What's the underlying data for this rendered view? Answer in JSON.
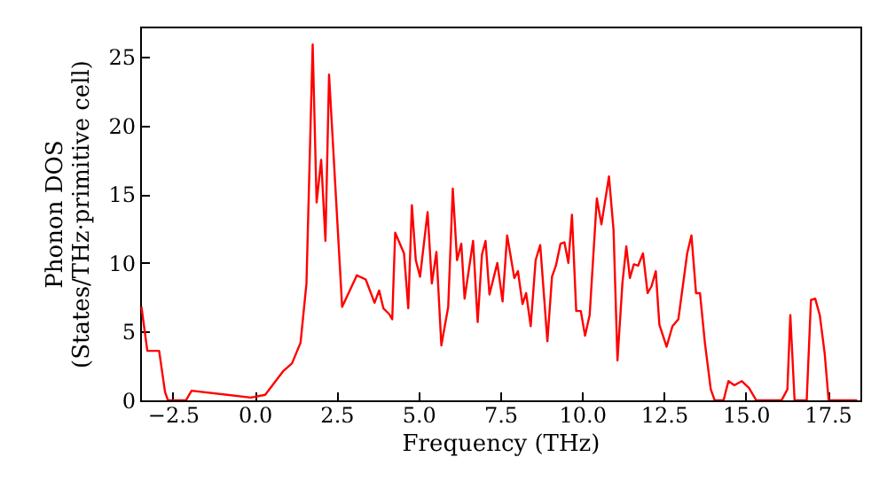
{
  "chart_data": {
    "type": "line",
    "xlabel": "Frequency (THz)",
    "ylabel": "Phonon DOS\n(States/THz·primitive cell)",
    "xlim": [
      -3.5,
      18.5
    ],
    "ylim": [
      0,
      27.2
    ],
    "xticks": [
      {
        "value": -2.5,
        "label": "−2.5"
      },
      {
        "value": 0,
        "label": "0.0"
      },
      {
        "value": 2.5,
        "label": "2.5"
      },
      {
        "value": 5,
        "label": "5.0"
      },
      {
        "value": 7.5,
        "label": "7.5"
      },
      {
        "value": 10,
        "label": "10.0"
      },
      {
        "value": 12.5,
        "label": "12.5"
      },
      {
        "value": 15,
        "label": "15.0"
      },
      {
        "value": 17.5,
        "label": "17.5"
      }
    ],
    "yticks": [
      0,
      5,
      10,
      15,
      20,
      25
    ],
    "grid": false,
    "marker": "none",
    "line_style": "solid",
    "x": [
      -3.46,
      -3.28,
      -2.92,
      -2.74,
      -2.65,
      -2.1,
      -1.93,
      -0.12,
      0.32,
      0.86,
      1.14,
      1.4,
      1.58,
      1.77,
      1.89,
      2.03,
      2.16,
      2.27,
      2.67,
      3.12,
      3.39,
      3.66,
      3.8,
      3.93,
      4.1,
      4.2,
      4.29,
      4.56,
      4.69,
      4.8,
      4.92,
      5.05,
      5.28,
      5.41,
      5.55,
      5.7,
      5.91,
      6.05,
      6.18,
      6.31,
      6.41,
      6.67,
      6.81,
      6.94,
      7.05,
      7.17,
      7.41,
      7.57,
      7.71,
      7.93,
      8.04,
      8.18,
      8.29,
      8.43,
      8.58,
      8.72,
      8.94,
      9.08,
      9.2,
      9.34,
      9.46,
      9.58,
      9.69,
      9.82,
      9.96,
      10.09,
      10.23,
      10.45,
      10.59,
      10.82,
      10.96,
      11.08,
      11.23,
      11.35,
      11.46,
      11.58,
      11.71,
      11.86,
      12.0,
      12.12,
      12.25,
      12.36,
      12.58,
      12.76,
      12.94,
      13.21,
      13.34,
      13.48,
      13.6,
      13.75,
      13.93,
      14.05,
      14.32,
      14.47,
      14.65,
      14.88,
      15.1,
      15.32,
      16.09,
      16.27,
      16.36,
      16.49,
      16.86,
      16.99,
      17.12,
      17.26,
      17.41,
      17.53,
      18.4
    ],
    "series": [
      {
        "color": "#ff0000",
        "values": [
          6.8,
          3.6,
          3.6,
          0.6,
          0,
          0,
          0.7,
          0.2,
          0.4,
          2.1,
          2.7,
          4.2,
          8.5,
          25.9,
          14.4,
          17.5,
          11.6,
          23.7,
          6.8,
          9.1,
          8.8,
          7.1,
          8.0,
          6.7,
          6.3,
          5.9,
          12.2,
          10.7,
          6.7,
          14.2,
          10.2,
          9.0,
          13.7,
          8.5,
          10.8,
          4.0,
          6.8,
          15.4,
          10.2,
          11.4,
          7.4,
          11.6,
          5.7,
          10.6,
          11.6,
          7.7,
          10.0,
          7.2,
          12.0,
          8.9,
          9.4,
          7.0,
          7.8,
          5.4,
          10.2,
          11.3,
          4.3,
          9.0,
          9.8,
          11.4,
          11.5,
          10.0,
          13.5,
          6.5,
          6.5,
          4.7,
          6.2,
          14.7,
          12.8,
          16.3,
          12.4,
          2.9,
          8.5,
          11.2,
          8.9,
          9.9,
          9.8,
          10.7,
          7.8,
          8.3,
          9.4,
          5.5,
          3.9,
          5.4,
          5.9,
          10.7,
          12.0,
          7.8,
          7.8,
          4.2,
          0.8,
          0,
          0,
          1.4,
          1.1,
          1.4,
          0.9,
          0,
          0,
          0.8,
          6.2,
          0,
          0,
          7.3,
          7.4,
          6.2,
          3.4,
          0,
          0
        ]
      }
    ]
  }
}
